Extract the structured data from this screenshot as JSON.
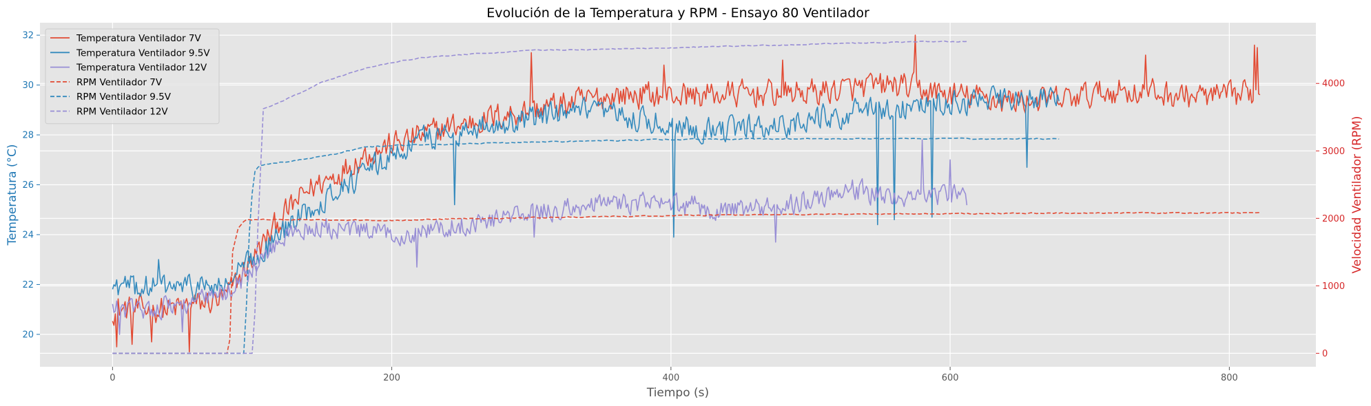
{
  "chart_data": {
    "type": "line",
    "title": "Evolución de la Temperatura y RPM - Ensayo 80 Ventilador",
    "xlabel": "Tiempo (s)",
    "ylabel_left": "Temperatura (°C)",
    "ylabel_right": "Velocidad Ventilador (RPM)",
    "xlim": [
      -52,
      862
    ],
    "ylim_left": [
      18.7,
      32.5
    ],
    "ylim_right": [
      -200,
      4900
    ],
    "x_ticks": [
      0,
      200,
      400,
      600,
      800
    ],
    "y_left_ticks": [
      20,
      22,
      24,
      26,
      28,
      30,
      32
    ],
    "y_right_ticks": [
      0,
      1000,
      2000,
      3000,
      4000
    ],
    "grid": true,
    "legend_position": "top-left",
    "colors": {
      "left_axis": "#1f77b4",
      "right_axis": "#d62728",
      "plot_background": "#e5e5e5",
      "grid": "#ffffff"
    },
    "series": [
      {
        "name": "Temperatura Ventilador 7V",
        "axis": "left",
        "style": "solid",
        "color": "#e24a33",
        "x_end": 822,
        "noise": 0.75,
        "points": [
          [
            0,
            21.0
          ],
          [
            40,
            21.0
          ],
          [
            80,
            21.4
          ],
          [
            100,
            23.0
          ],
          [
            120,
            24.6
          ],
          [
            140,
            25.8
          ],
          [
            160,
            26.4
          ],
          [
            180,
            27.2
          ],
          [
            200,
            27.6
          ],
          [
            240,
            28.3
          ],
          [
            280,
            28.8
          ],
          [
            320,
            29.2
          ],
          [
            360,
            29.6
          ],
          [
            420,
            29.6
          ],
          [
            500,
            29.7
          ],
          [
            560,
            30.0
          ],
          [
            600,
            29.6
          ],
          [
            640,
            29.4
          ],
          [
            680,
            29.4
          ],
          [
            720,
            29.8
          ],
          [
            760,
            29.6
          ],
          [
            800,
            29.5
          ],
          [
            822,
            29.8
          ]
        ],
        "spikes": [
          [
            3,
            19.5
          ],
          [
            14,
            19.6
          ],
          [
            28,
            19.7
          ],
          [
            55,
            19.3
          ],
          [
            300,
            31.3
          ],
          [
            395,
            30.8
          ],
          [
            480,
            31.0
          ],
          [
            575,
            32.0
          ],
          [
            740,
            31.2
          ],
          [
            818,
            31.6
          ],
          [
            820,
            31.5
          ]
        ]
      },
      {
        "name": "Temperatura Ventilador 9.5V",
        "axis": "left",
        "style": "solid",
        "color": "#348abd",
        "x_end": 678,
        "noise": 0.7,
        "points": [
          [
            0,
            21.9
          ],
          [
            80,
            21.9
          ],
          [
            100,
            23.0
          ],
          [
            120,
            24.0
          ],
          [
            140,
            25.0
          ],
          [
            160,
            25.8
          ],
          [
            180,
            26.4
          ],
          [
            200,
            27.2
          ],
          [
            220,
            27.8
          ],
          [
            260,
            28.3
          ],
          [
            300,
            28.7
          ],
          [
            340,
            28.9
          ],
          [
            380,
            28.6
          ],
          [
            400,
            28.4
          ],
          [
            440,
            28.2
          ],
          [
            480,
            28.4
          ],
          [
            520,
            28.8
          ],
          [
            560,
            29.1
          ],
          [
            600,
            29.3
          ],
          [
            640,
            29.4
          ],
          [
            678,
            29.4
          ]
        ],
        "spikes": [
          [
            33,
            23.0
          ],
          [
            245,
            25.2
          ],
          [
            402,
            23.9
          ],
          [
            548,
            24.4
          ],
          [
            560,
            24.6
          ],
          [
            587,
            24.7
          ],
          [
            655,
            26.7
          ]
        ]
      },
      {
        "name": "Temperatura Ventilador 12V",
        "axis": "left",
        "style": "solid",
        "color": "#988ed5",
        "x_end": 612,
        "noise": 0.6,
        "points": [
          [
            0,
            21.0
          ],
          [
            20,
            21.0
          ],
          [
            60,
            21.3
          ],
          [
            80,
            21.6
          ],
          [
            100,
            22.6
          ],
          [
            120,
            23.8
          ],
          [
            140,
            24.3
          ],
          [
            160,
            24.2
          ],
          [
            200,
            24.0
          ],
          [
            240,
            24.3
          ],
          [
            280,
            24.7
          ],
          [
            320,
            25.0
          ],
          [
            360,
            25.3
          ],
          [
            400,
            25.2
          ],
          [
            440,
            25.0
          ],
          [
            480,
            25.1
          ],
          [
            500,
            25.5
          ],
          [
            530,
            25.8
          ],
          [
            560,
            25.5
          ],
          [
            600,
            25.6
          ],
          [
            612,
            25.4
          ]
        ],
        "spikes": [
          [
            5,
            20.0
          ],
          [
            50,
            20.1
          ],
          [
            218,
            22.7
          ],
          [
            302,
            23.9
          ],
          [
            475,
            23.7
          ],
          [
            580,
            27.8
          ],
          [
            600,
            27.0
          ]
        ]
      },
      {
        "name": "RPM Ventilador 7V",
        "axis": "right",
        "style": "dashed",
        "color": "#e24a33",
        "x_end": 822,
        "noise": 12,
        "points": [
          [
            0,
            0
          ],
          [
            82,
            0
          ],
          [
            84,
            200
          ],
          [
            86,
            1500
          ],
          [
            90,
            1850
          ],
          [
            95,
            1980
          ],
          [
            150,
            1980
          ],
          [
            200,
            1970
          ],
          [
            240,
            1990
          ],
          [
            300,
            2010
          ],
          [
            400,
            2040
          ],
          [
            500,
            2060
          ],
          [
            600,
            2070
          ],
          [
            700,
            2080
          ],
          [
            822,
            2080
          ]
        ]
      },
      {
        "name": "RPM Ventilador 9.5V",
        "axis": "right",
        "style": "dashed",
        "color": "#348abd",
        "x_end": 678,
        "noise": 12,
        "points": [
          [
            0,
            0
          ],
          [
            95,
            0
          ],
          [
            97,
            1500
          ],
          [
            101,
            2650
          ],
          [
            105,
            2780
          ],
          [
            120,
            2830
          ],
          [
            140,
            2880
          ],
          [
            160,
            2960
          ],
          [
            180,
            3050
          ],
          [
            200,
            3080
          ],
          [
            240,
            3100
          ],
          [
            300,
            3130
          ],
          [
            400,
            3170
          ],
          [
            500,
            3180
          ],
          [
            600,
            3180
          ],
          [
            678,
            3180
          ]
        ]
      },
      {
        "name": "RPM Ventilador 12V",
        "axis": "right",
        "style": "dashed",
        "color": "#988ed5",
        "x_end": 612,
        "noise": 10,
        "points": [
          [
            0,
            0
          ],
          [
            101,
            0
          ],
          [
            104,
            1800
          ],
          [
            108,
            3620
          ],
          [
            120,
            3720
          ],
          [
            135,
            3870
          ],
          [
            150,
            4020
          ],
          [
            165,
            4120
          ],
          [
            180,
            4220
          ],
          [
            200,
            4310
          ],
          [
            220,
            4380
          ],
          [
            260,
            4440
          ],
          [
            300,
            4490
          ],
          [
            360,
            4510
          ],
          [
            420,
            4540
          ],
          [
            480,
            4570
          ],
          [
            540,
            4600
          ],
          [
            580,
            4620
          ],
          [
            612,
            4620
          ]
        ]
      }
    ]
  }
}
